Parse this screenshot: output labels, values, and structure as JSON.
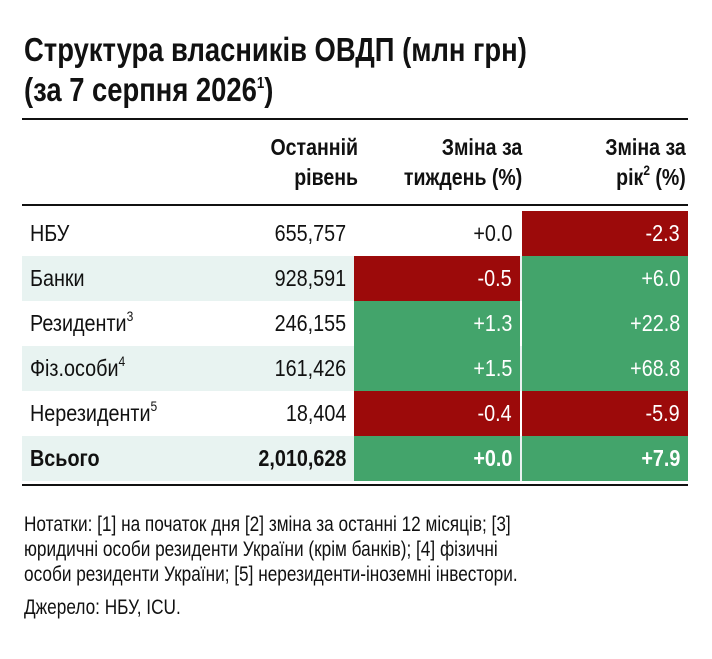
{
  "title": {
    "line1": "Структура власників ОВДП (млн грн)",
    "line2": "(за 7 серпня 2026",
    "line2_sup": "1",
    "line2_end": ")"
  },
  "columns": {
    "last": {
      "l1": "Останній",
      "l2": "рівень"
    },
    "week": {
      "l1": "Зміна за",
      "l2": "тиждень (%)"
    },
    "year": {
      "l1": "Зміна за",
      "l2": "рік",
      "l2_sup": "2",
      "l2_end": " (%)"
    }
  },
  "rows": [
    {
      "label": "НБУ",
      "sup": "",
      "value": "655,757",
      "week": "+0.0",
      "year": "-2.3",
      "week_color": "none",
      "year_color": "red"
    },
    {
      "label": "Банки",
      "sup": "",
      "value": "928,591",
      "week": "-0.5",
      "year": "+6.0",
      "week_color": "red",
      "year_color": "green"
    },
    {
      "label": "Резиденти",
      "sup": "3",
      "value": "246,155",
      "week": "+1.3",
      "year": "+22.8",
      "week_color": "green",
      "year_color": "green"
    },
    {
      "label": "Фіз.особи",
      "sup": "4",
      "value": "161,426",
      "week": "+1.5",
      "year": "+68.8",
      "week_color": "green",
      "year_color": "green"
    },
    {
      "label": "Нерезиденти",
      "sup": "5",
      "value": "18,404",
      "week": "-0.4",
      "year": "-5.9",
      "week_color": "red",
      "year_color": "red"
    }
  ],
  "total": {
    "label": "Всього",
    "value": "2,010,628",
    "week": "+0.0",
    "year": "+7.9",
    "week_color": "green",
    "year_color": "green"
  },
  "notes": {
    "line1": "Нотатки: [1] на початок дня [2] зміна за останні 12 місяців; [3]",
    "line2": "юридичні особи  резиденти України (крім банків); [4] фізичні",
    "line3": "особи резиденти України; [5] нерезиденти-іноземні інвестори.",
    "source": "Джерело: НБУ, ICU."
  },
  "colors": {
    "red": "#9c0a0a",
    "green": "#43a46b",
    "shade": "#e8f3f1"
  }
}
